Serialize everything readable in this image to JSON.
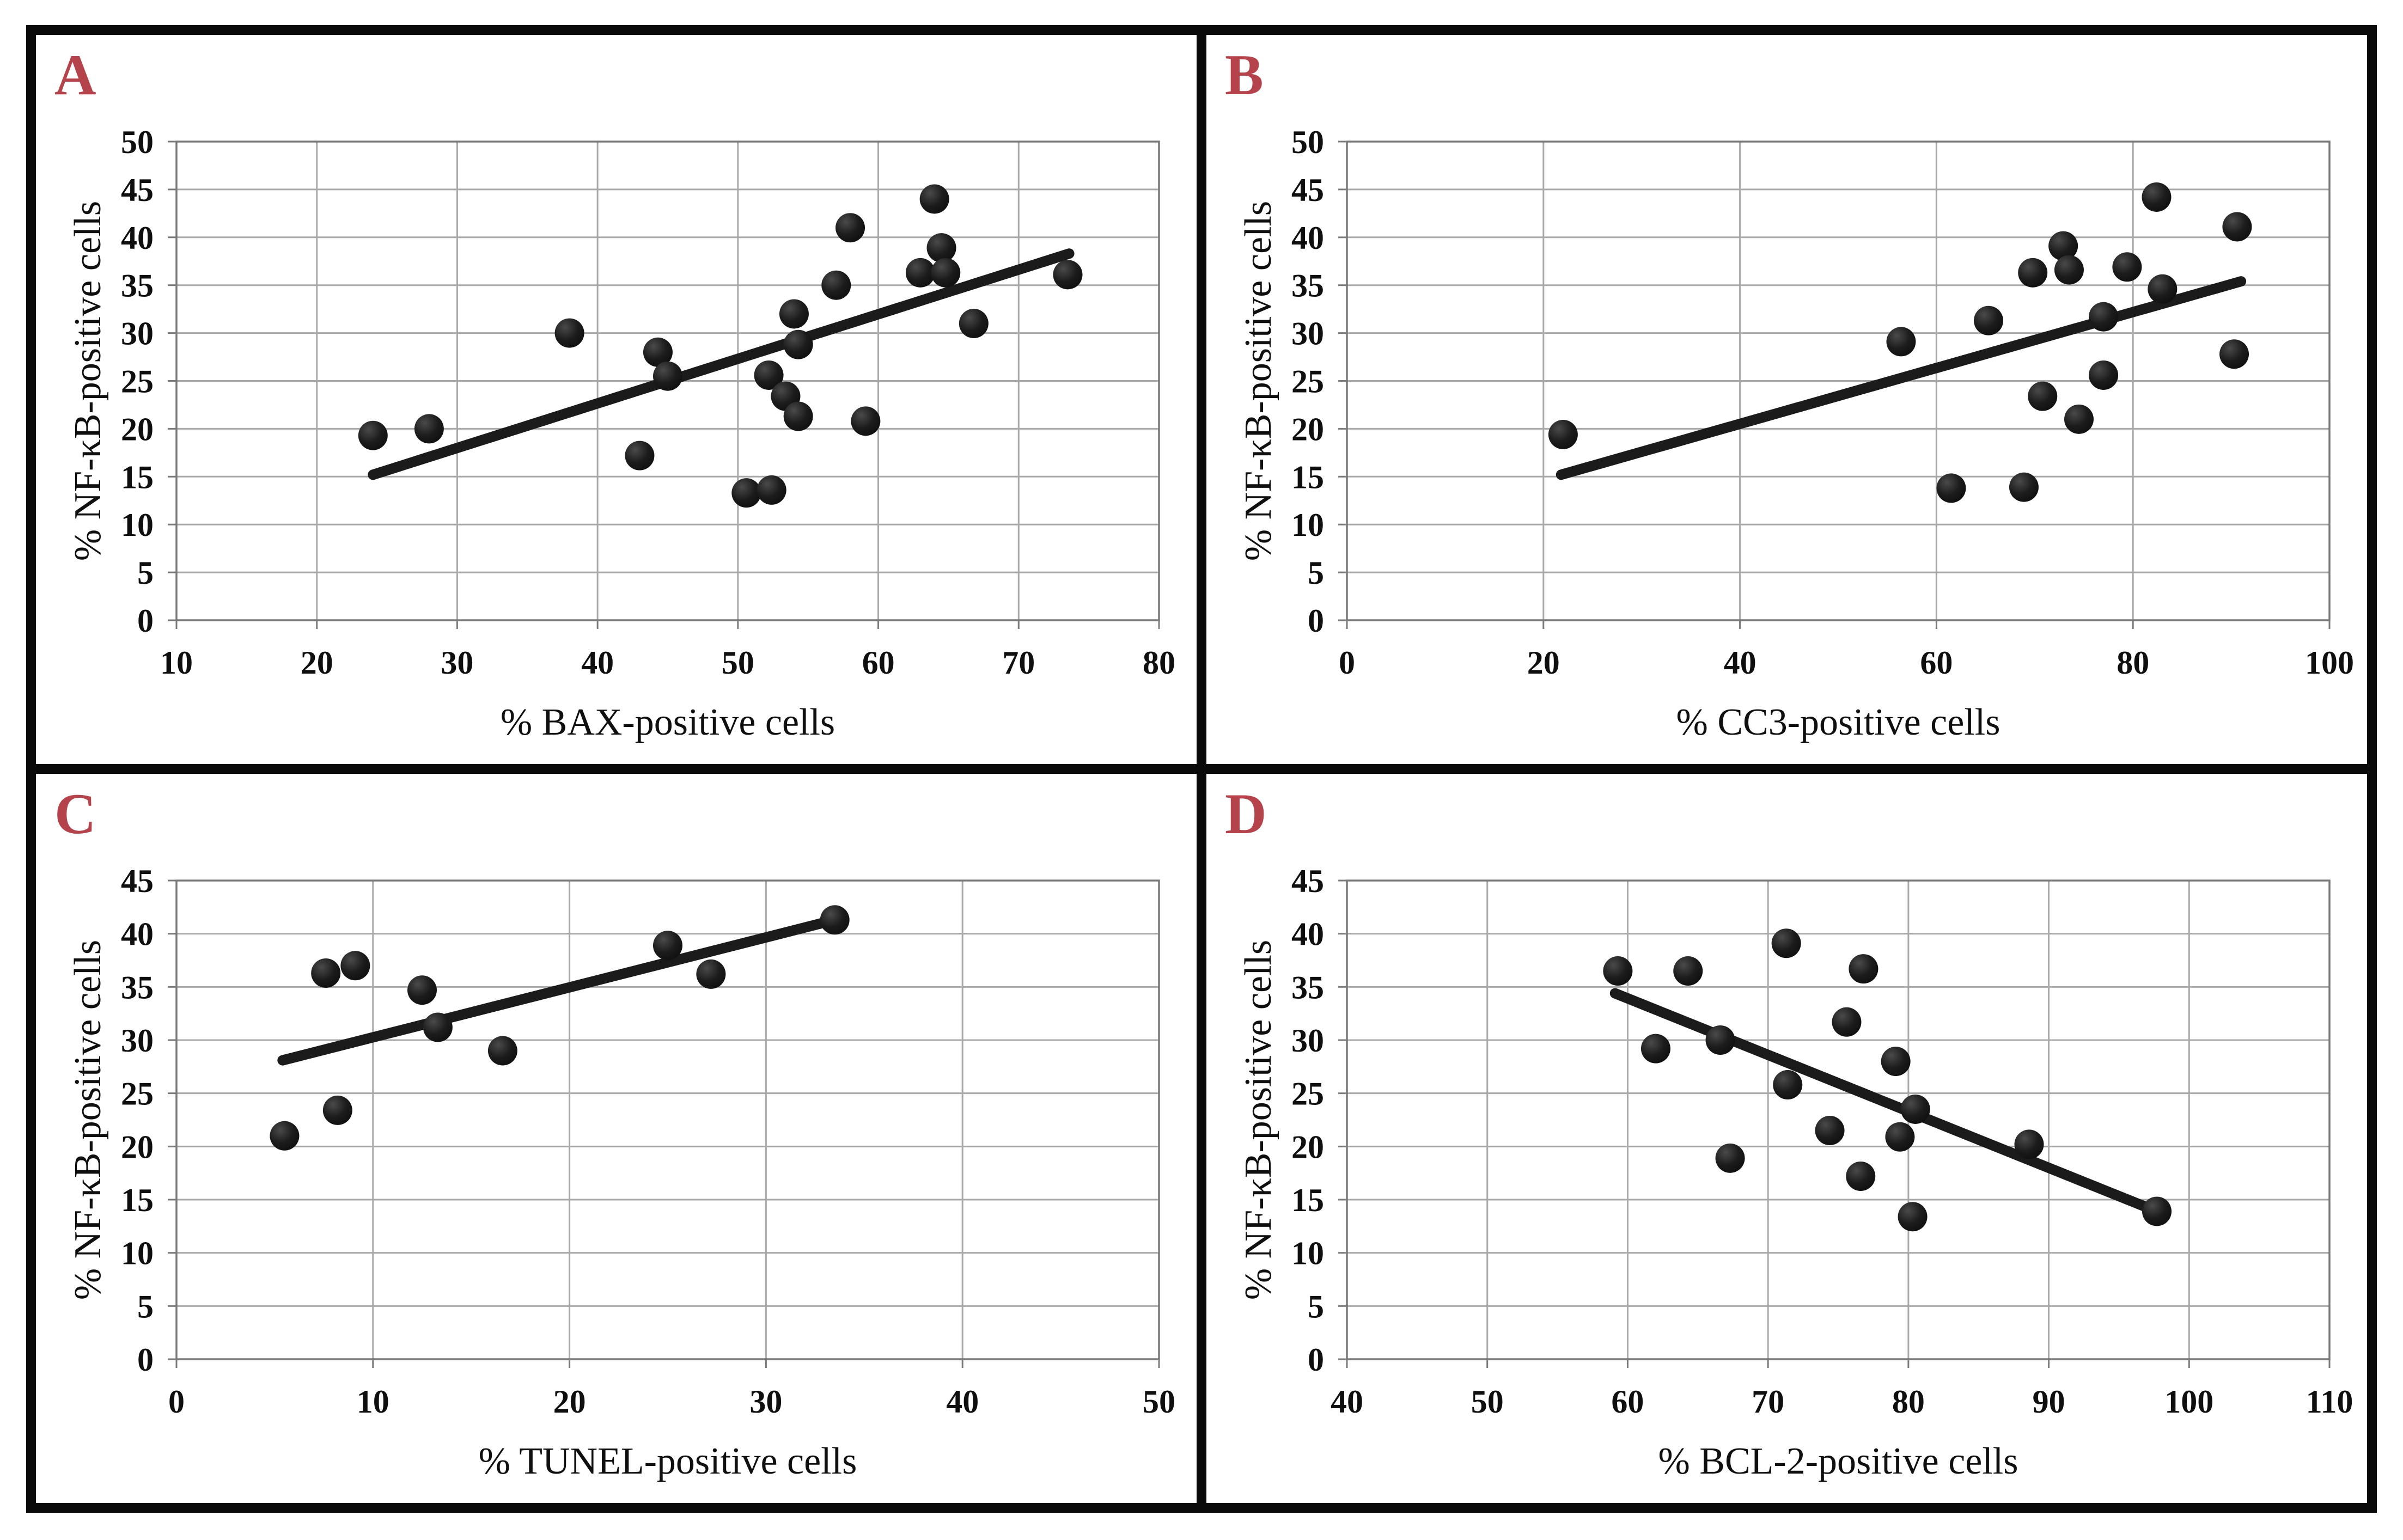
{
  "figure": {
    "description": "Four scatter plots with linear trendlines relating NF-kB-positive cells to apoptosis markers",
    "background": "#ffffff",
    "frame_color": "#0a0a0a"
  },
  "style": {
    "panel_letter_color": "#b5434b",
    "point_color_outer": "#0e0e0e",
    "point_color_highlight": "#4a4a4a",
    "trend_color": "#1b1b1b",
    "grid_color": "#a9a9a9",
    "plot_border_color": "#7a7a7a",
    "tick_label_color": "#0f0f0f",
    "axis_title_color": "#0f0f0f"
  },
  "chart_data": [
    {
      "panel_label": "A",
      "type": "scatter",
      "xlabel": "% BAX-positive  cells",
      "ylabel": "% NF-κB-positive  cells",
      "xlim": [
        10,
        80
      ],
      "xtick_step": 10,
      "ylim": [
        0,
        50
      ],
      "ytick_step": 5,
      "grid": true,
      "legend": "none",
      "points": [
        [
          24,
          19.3
        ],
        [
          28,
          20
        ],
        [
          38,
          30
        ],
        [
          43,
          17.2
        ],
        [
          44.3,
          28
        ],
        [
          45,
          25.5
        ],
        [
          50.6,
          13.3
        ],
        [
          52.4,
          13.6
        ],
        [
          52.2,
          25.6
        ],
        [
          53.4,
          23.4
        ],
        [
          54,
          32
        ],
        [
          54.3,
          28.8
        ],
        [
          54.3,
          21.3
        ],
        [
          57,
          35
        ],
        [
          58,
          41
        ],
        [
          59.1,
          20.8
        ],
        [
          63,
          36.3
        ],
        [
          64,
          44
        ],
        [
          64.5,
          38.9
        ],
        [
          64.8,
          36.3
        ],
        [
          66.8,
          31
        ],
        [
          73.5,
          36.1
        ]
      ],
      "trendline": [
        [
          24,
          15.2
        ],
        [
          73.6,
          38.3
        ]
      ]
    },
    {
      "panel_label": "B",
      "type": "scatter",
      "xlabel": "% CC3-positive  cells",
      "ylabel": "% NF-κB-positive  cells",
      "xlim": [
        0,
        100
      ],
      "xtick_step": 20,
      "ylim": [
        0,
        50
      ],
      "ytick_step": 5,
      "grid": true,
      "legend": "none",
      "points": [
        [
          22,
          19.4
        ],
        [
          56.4,
          29.1
        ],
        [
          61.5,
          13.8
        ],
        [
          65.3,
          31.3
        ],
        [
          68.9,
          13.9
        ],
        [
          69.8,
          36.3
        ],
        [
          70.8,
          23.4
        ],
        [
          72.9,
          39.1
        ],
        [
          73.5,
          36.6
        ],
        [
          74.5,
          21
        ],
        [
          77,
          31.7
        ],
        [
          77,
          25.6
        ],
        [
          79.4,
          36.9
        ],
        [
          82.4,
          44.2
        ],
        [
          83,
          34.6
        ],
        [
          90.3,
          27.8
        ],
        [
          90.6,
          41.1
        ]
      ],
      "trendline": [
        [
          21.8,
          15.2
        ],
        [
          91,
          35.4
        ]
      ]
    },
    {
      "panel_label": "C",
      "type": "scatter",
      "xlabel": "% TUNEL-positive  cells",
      "ylabel": "% NF-κB-positive  cells",
      "xlim": [
        0,
        50
      ],
      "xtick_step": 10,
      "ylim": [
        0,
        45
      ],
      "ytick_step": 5,
      "grid": true,
      "legend": "none",
      "points": [
        [
          5.5,
          21
        ],
        [
          7.6,
          36.3
        ],
        [
          8.2,
          23.4
        ],
        [
          9.1,
          37
        ],
        [
          12.5,
          34.7
        ],
        [
          13.3,
          31.2
        ],
        [
          16.6,
          29
        ],
        [
          25,
          38.9
        ],
        [
          27.2,
          36.2
        ],
        [
          33.5,
          41.3
        ]
      ],
      "trendline": [
        [
          5.4,
          28.1
        ],
        [
          33.5,
          41.3
        ]
      ]
    },
    {
      "panel_label": "D",
      "type": "scatter",
      "xlabel": "% BCL-2-positive  cells",
      "ylabel": "% NF-κB-positive  cells",
      "xlim": [
        40,
        110
      ],
      "xtick_step": 10,
      "ylim": [
        0,
        45
      ],
      "ytick_step": 5,
      "grid": true,
      "legend": "none",
      "points": [
        [
          59.3,
          36.5
        ],
        [
          62,
          29.2
        ],
        [
          64.3,
          36.5
        ],
        [
          66.6,
          30
        ],
        [
          67.3,
          18.9
        ],
        [
          71.3,
          39.1
        ],
        [
          71.4,
          25.8
        ],
        [
          74.4,
          21.5
        ],
        [
          75.6,
          31.7
        ],
        [
          76.6,
          17.2
        ],
        [
          76.8,
          36.7
        ],
        [
          79.1,
          28
        ],
        [
          79.4,
          20.9
        ],
        [
          80.3,
          13.4
        ],
        [
          80.5,
          23.5
        ],
        [
          88.6,
          20.2
        ],
        [
          97.7,
          13.9
        ]
      ],
      "trendline": [
        [
          59.1,
          34.4
        ],
        [
          97.7,
          13.9
        ]
      ]
    }
  ]
}
